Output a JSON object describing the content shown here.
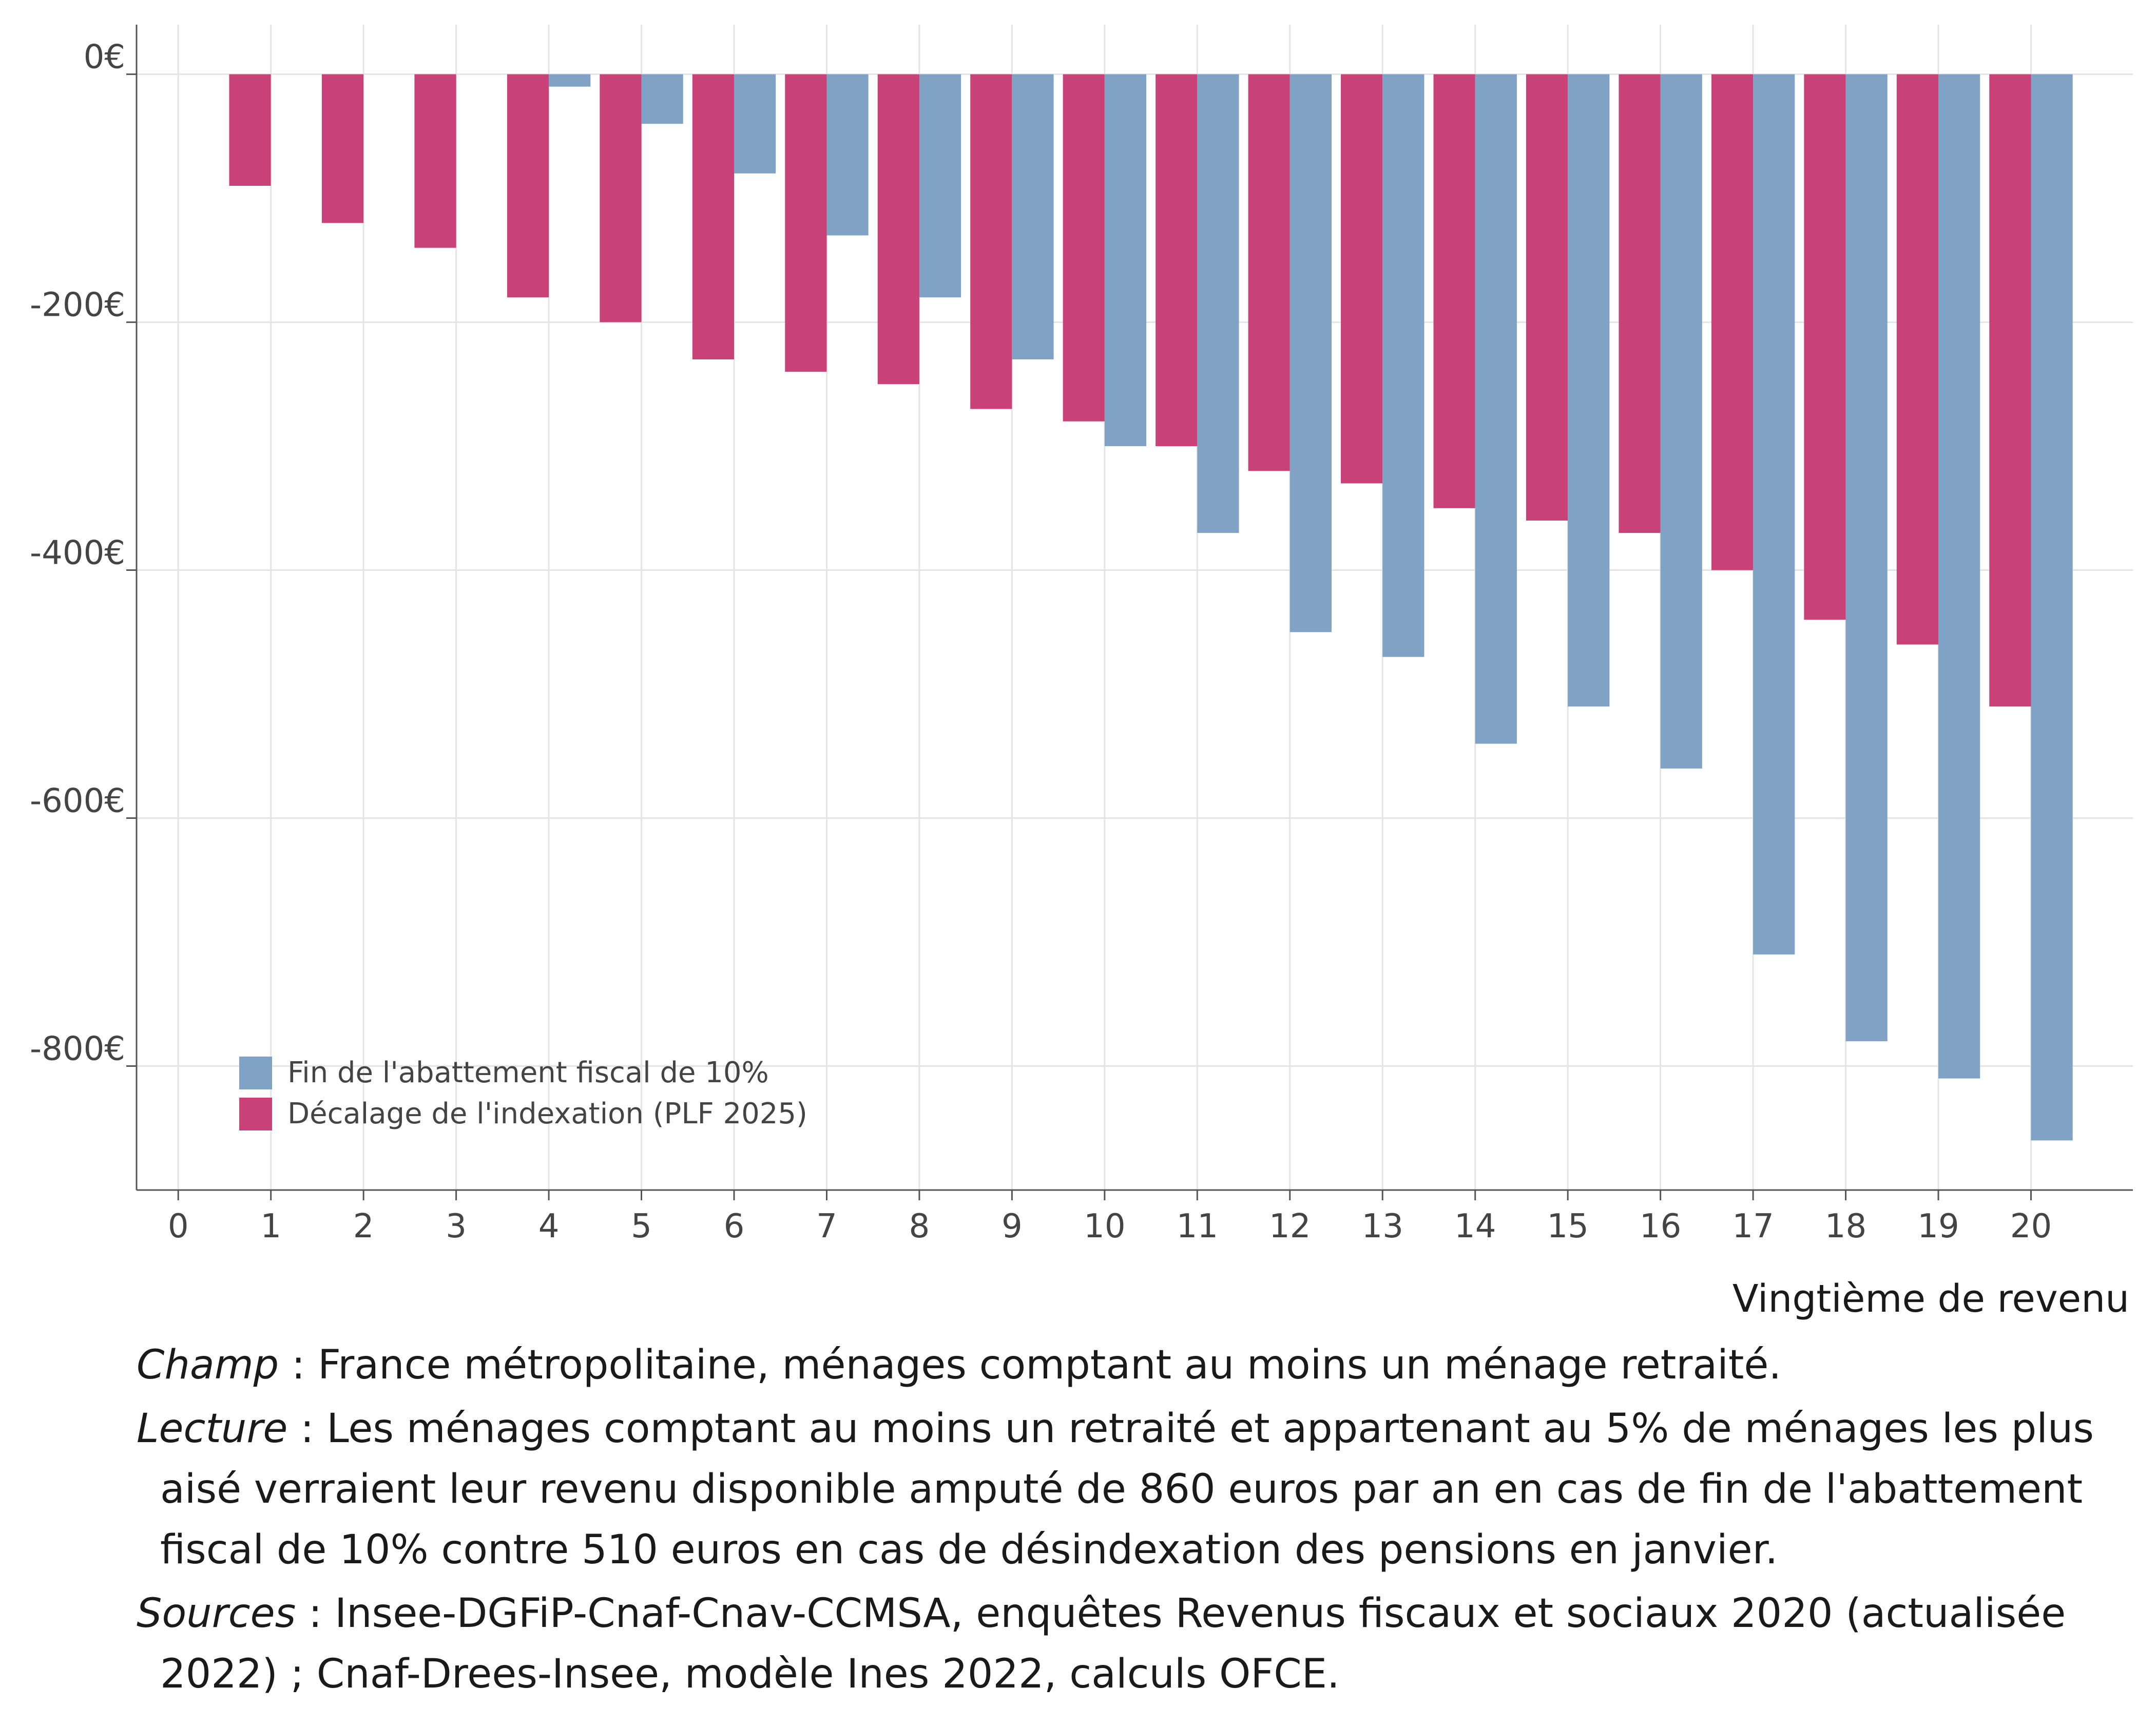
{
  "chart_data": {
    "type": "bar",
    "title": "",
    "xlabel": "Vingtième de revenu",
    "ylabel": "",
    "x_ticks": [
      "0",
      "1",
      "2",
      "3",
      "4",
      "5",
      "6",
      "7",
      "8",
      "9",
      "10",
      "11",
      "12",
      "13",
      "14",
      "15",
      "16",
      "17",
      "18",
      "19",
      "20"
    ],
    "categories": [
      "1",
      "2",
      "3",
      "4",
      "5",
      "6",
      "7",
      "8",
      "9",
      "10",
      "11",
      "12",
      "13",
      "14",
      "15",
      "16",
      "17",
      "18",
      "19",
      "20"
    ],
    "y_ticks": [
      0,
      -200,
      -400,
      -600,
      -800
    ],
    "y_tick_labels": [
      "0€",
      "-200€",
      "-400€",
      "-600€",
      "-800€"
    ],
    "ylim": [
      -900,
      40
    ],
    "xlim": [
      -0.45,
      21.1
    ],
    "grid": true,
    "legend_position": "bottom-left",
    "series": [
      {
        "name": "Fin de l'abattement fiscal de 10%",
        "color": "#80a2c4",
        "values": [
          0,
          0,
          0,
          -10,
          -40,
          -80,
          -130,
          -180,
          -230,
          -300,
          -370,
          -450,
          -470,
          -540,
          -510,
          -560,
          -710,
          -780,
          -810,
          -860
        ]
      },
      {
        "name": "Décalage de l'indexation (PLF 2025)",
        "color": "#c94277",
        "values": [
          -90,
          -120,
          -140,
          -180,
          -200,
          -230,
          -240,
          -250,
          -270,
          -280,
          -300,
          -320,
          -330,
          -350,
          -360,
          -370,
          -400,
          -440,
          -460,
          -510
        ]
      }
    ]
  },
  "notes": [
    {
      "key": "Champ",
      "text": " : France métropolitaine, ménages comptant au moins un ménage retraité."
    },
    {
      "key": "Lecture",
      "text": " :  Les ménages comptant au moins un retraité et appartenant au 5% de ménages les plus aisé verraient leur revenu disponible amputé de 860 euros par an en cas de fin de l'abattement fiscal de 10% contre 510 euros en cas de désindexation des pensions en janvier."
    },
    {
      "key": "Sources",
      "text": " : Insee-DGFiP-Cnaf-Cnav-CCMSA, enquêtes Revenus fiscaux et sociaux 2020 (actualisée 2022) ; Cnaf-Drees-Insee, modèle Ines 2022, calculs OFCE."
    }
  ]
}
